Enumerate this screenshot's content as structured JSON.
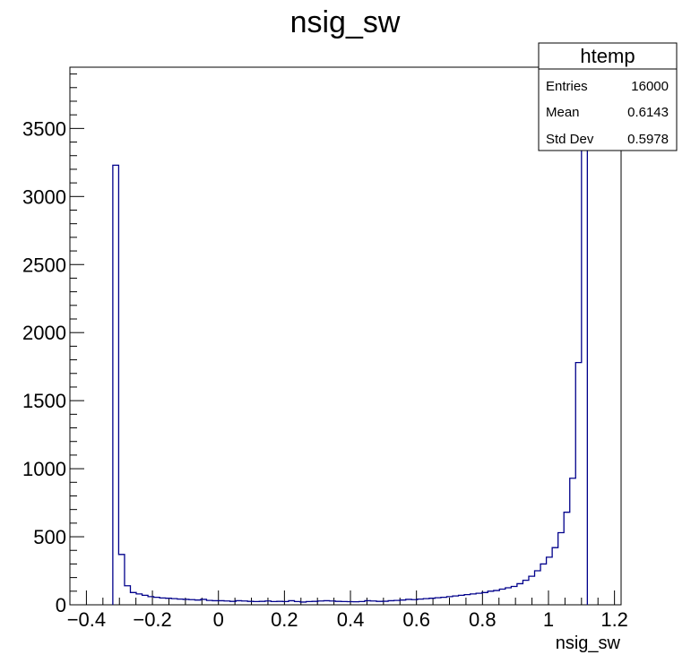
{
  "chart_data": {
    "type": "bar",
    "title": "nsig_sw",
    "xlabel": "nsig_sw",
    "ylabel": "",
    "xlim": [
      -0.45,
      1.22
    ],
    "ylim": [
      0,
      3950
    ],
    "xticks": [
      "−0.4",
      "−0.2",
      "0",
      "0.2",
      "0.4",
      "0.6",
      "0.8",
      "1",
      "1.2"
    ],
    "xtick_values": [
      -0.4,
      -0.2,
      0,
      0.2,
      0.4,
      0.6,
      0.8,
      1.0,
      1.2
    ],
    "yticks": [
      "0",
      "500",
      "1000",
      "1500",
      "2000",
      "2500",
      "3000",
      "3500"
    ],
    "ytick_values": [
      0,
      500,
      1000,
      1500,
      2000,
      2500,
      3000,
      3500
    ],
    "grid": false,
    "line_color": "#00008b",
    "bins": {
      "x_start": -0.32,
      "x_end": 1.1,
      "values": [
        3230,
        370,
        140,
        90,
        80,
        70,
        60,
        55,
        50,
        48,
        45,
        42,
        40,
        38,
        35,
        40,
        32,
        30,
        30,
        28,
        25,
        30,
        28,
        25,
        24,
        25,
        28,
        24,
        25,
        24,
        30,
        24,
        20,
        24,
        25,
        28,
        30,
        28,
        25,
        24,
        23,
        22,
        24,
        30,
        28,
        25,
        26,
        30,
        32,
        35,
        40,
        38,
        42,
        45,
        48,
        52,
        55,
        60,
        65,
        70,
        75,
        80,
        85,
        90,
        100,
        105,
        115,
        125,
        135,
        155,
        180,
        210,
        250,
        300,
        350,
        420,
        530,
        680,
        930,
        1780,
        3950
      ]
    },
    "stats_box": {
      "title": "htemp",
      "rows": [
        {
          "label": "Entries",
          "value": "16000"
        },
        {
          "label": "Mean",
          "value": "0.6143"
        },
        {
          "label": "Std Dev",
          "value": "0.5978"
        }
      ]
    }
  }
}
